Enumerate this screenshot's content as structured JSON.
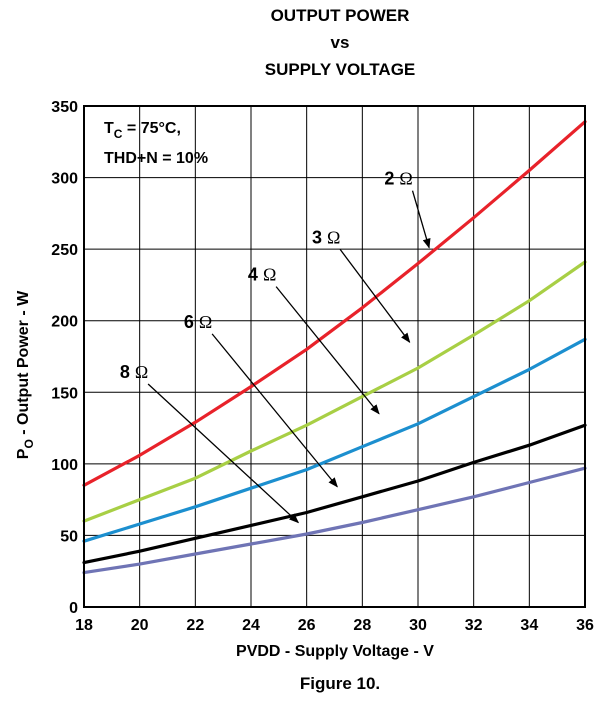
{
  "chart_data": {
    "type": "line",
    "title_lines": [
      "OUTPUT POWER",
      "vs",
      "SUPPLY VOLTAGE"
    ],
    "caption": "Figure 10.",
    "xlabel": "PVDD - Supply Voltage - V",
    "ylabel": {
      "main": "P",
      "sub": "O",
      "rest": " - Output Power - W"
    },
    "xlim": [
      18,
      36
    ],
    "ylim": [
      0,
      350
    ],
    "x_ticks": [
      18,
      20,
      22,
      24,
      26,
      28,
      30,
      32,
      34,
      36
    ],
    "y_ticks": [
      0,
      50,
      100,
      150,
      200,
      250,
      300,
      350
    ],
    "grid": true,
    "conditions": [
      {
        "main": "T",
        "sub": "C",
        "rest": " = 75°C,"
      },
      {
        "main": "THD+N = 10%",
        "sub": "",
        "rest": ""
      }
    ],
    "series": [
      {
        "name": "2 Ω",
        "label_text": "2",
        "unit": "Ω",
        "color": "#e8222a",
        "x": [
          18,
          20,
          22,
          24,
          26,
          28,
          30,
          32,
          34,
          36
        ],
        "y": [
          85,
          106,
          129,
          154,
          180,
          209,
          240,
          272,
          305,
          339
        ]
      },
      {
        "name": "3 Ω",
        "label_text": "3",
        "unit": "Ω",
        "color": "#a8cf45",
        "x": [
          18,
          20,
          22,
          24,
          26,
          28,
          30,
          32,
          34,
          36
        ],
        "y": [
          60,
          75,
          90,
          109,
          127,
          147,
          167,
          190,
          214,
          241
        ]
      },
      {
        "name": "4 Ω",
        "label_text": "4",
        "unit": "Ω",
        "color": "#1c8fcf",
        "x": [
          18,
          20,
          22,
          24,
          26,
          28,
          30,
          32,
          34,
          36
        ],
        "y": [
          46,
          58,
          70,
          83,
          96,
          112,
          128,
          147,
          166,
          187
        ]
      },
      {
        "name": "6 Ω",
        "label_text": "6",
        "unit": "Ω",
        "color": "#000000",
        "x": [
          18,
          20,
          22,
          24,
          26,
          28,
          30,
          32,
          34,
          36
        ],
        "y": [
          31,
          39,
          48,
          57,
          66,
          77,
          88,
          101,
          113,
          127
        ]
      },
      {
        "name": "8 Ω",
        "label_text": "8",
        "unit": "Ω",
        "color": "#6f74b5",
        "x": [
          18,
          20,
          22,
          24,
          26,
          28,
          30,
          32,
          34,
          36
        ],
        "y": [
          24,
          30,
          37,
          44,
          51,
          59,
          68,
          77,
          87,
          97
        ]
      }
    ],
    "annotations": [
      {
        "series": "2 Ω",
        "label_at": [
          29.3,
          295
        ],
        "arrow_to": [
          30.4,
          251
        ]
      },
      {
        "series": "3 Ω",
        "label_at": [
          26.7,
          254
        ],
        "arrow_to": [
          29.7,
          185
        ]
      },
      {
        "series": "4 Ω",
        "label_at": [
          24.4,
          228
        ],
        "arrow_to": [
          28.6,
          135
        ]
      },
      {
        "series": "6 Ω",
        "label_at": [
          22.1,
          195
        ],
        "arrow_to": [
          27.1,
          84
        ]
      },
      {
        "series": "8 Ω",
        "label_at": [
          19.8,
          160
        ],
        "arrow_to": [
          25.7,
          59
        ]
      }
    ]
  }
}
